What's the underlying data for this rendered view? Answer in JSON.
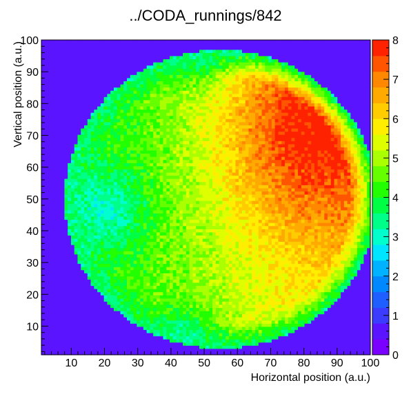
{
  "chart_data": {
    "type": "heatmap",
    "title": "../CODA_runnings/842",
    "xlabel": "Horizontal position (a.u.)",
    "ylabel": "Vertical position (a.u.)",
    "xlim": [
      1,
      100
    ],
    "ylim": [
      1,
      100
    ],
    "zlim": [
      0,
      8
    ],
    "x_ticks": [
      10,
      20,
      30,
      40,
      50,
      60,
      70,
      80,
      90,
      100
    ],
    "y_ticks": [
      10,
      20,
      30,
      40,
      50,
      60,
      70,
      80,
      90,
      100
    ],
    "z_ticks": [
      0,
      1,
      2,
      3,
      4,
      5,
      6,
      7,
      8
    ],
    "bins": [
      100,
      100
    ],
    "profile": {
      "disk_center": [
        55,
        50
      ],
      "disk_radius": 45,
      "left_patch_center": [
        22,
        47
      ],
      "hot_spot_center": [
        80,
        72
      ],
      "background": 0.7,
      "edge_ring_value": 3.5
    },
    "colors": [
      "#7a00ff",
      "#5a14ff",
      "#3c3cff",
      "#1f5fff",
      "#0088ff",
      "#00b2ff",
      "#00e5ff",
      "#00ffcc",
      "#00ff88",
      "#00ff44",
      "#22ff00",
      "#66ff00",
      "#aaff00",
      "#ddff00",
      "#ffee00",
      "#ffcc00",
      "#ffaa00",
      "#ff8800",
      "#ff5500",
      "#ff2200"
    ]
  }
}
